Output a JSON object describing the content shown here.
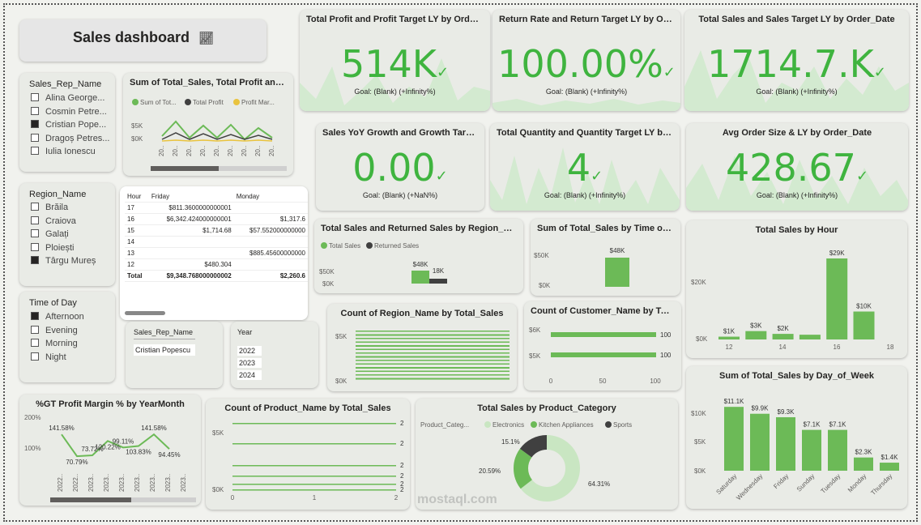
{
  "header": {
    "title": "Sales dashboard",
    "icon": "line-chart-icon"
  },
  "kpis": [
    {
      "title": "Total Profit and Profit Target LY by Order_...",
      "value": "514K",
      "goal": "Goal: (Blank) (+Infinity%)"
    },
    {
      "title": "Return Rate and Return Target LY by Ord...",
      "value": "100.00%",
      "goal": "Goal: (Blank) (+Infinity%)"
    },
    {
      "title": "Total Sales and Sales Target LY by Order_Date",
      "value": "1714.7.K",
      "goal": "Goal: (Blank) (+Infinity%)"
    },
    {
      "title": "Sales YoY Growth and Growth Targe...",
      "value": "0.00",
      "goal": "Goal: (Blank) (+NaN%)"
    },
    {
      "title": "Total Quantity and Quantity Target LY by ...",
      "value": "4",
      "goal": "Goal: (Blank) (+Infinity%)"
    },
    {
      "title": "Avg Order Size & LY by Order_Date",
      "value": "428.67",
      "goal": "Goal: (Blank) (+Infinity%)"
    }
  ],
  "slicers": {
    "rep": {
      "title": "Sales_Rep_Name",
      "items": [
        {
          "label": "Alina George...",
          "checked": false
        },
        {
          "label": "Cosmin Petre...",
          "checked": false
        },
        {
          "label": "Cristian Pope...",
          "checked": true
        },
        {
          "label": "Dragoș Petres...",
          "checked": false
        },
        {
          "label": "Iulia Ionescu",
          "checked": false
        }
      ]
    },
    "region": {
      "title": "Region_Name",
      "items": [
        {
          "label": "Brăila",
          "checked": false
        },
        {
          "label": "Craiova",
          "checked": false
        },
        {
          "label": "Galați",
          "checked": false
        },
        {
          "label": "Ploiești",
          "checked": false
        },
        {
          "label": "Târgu Mureș",
          "checked": true
        }
      ]
    },
    "time": {
      "title": "Time of Day",
      "items": [
        {
          "label": "Afternoon",
          "checked": true
        },
        {
          "label": "Evening",
          "checked": false
        },
        {
          "label": "Morning",
          "checked": false
        },
        {
          "label": "Night",
          "checked": false
        }
      ]
    }
  },
  "small_tables": {
    "rep": {
      "header": "Sales_Rep_Name",
      "value": "Cristian Popescu"
    },
    "year": {
      "header": "Year",
      "values": [
        "2022",
        "2023",
        "2024"
      ]
    }
  },
  "matrix": {
    "headers": [
      "Hour",
      "Friday",
      "Monday"
    ],
    "rows": [
      [
        "17",
        "$811.3600000000001",
        ""
      ],
      [
        "16",
        "$6,342.424000000001",
        "$1,317.6"
      ],
      [
        "15",
        "$1,714.68",
        "$57.552000000000"
      ],
      [
        "14",
        "",
        ""
      ],
      [
        "13",
        "",
        "$885.45600000000"
      ],
      [
        "12",
        "$480.304",
        ""
      ],
      [
        "Total",
        "$9,348.768000000002",
        "$2,260.6"
      ]
    ]
  },
  "charts": {
    "combo": {
      "title": "Sum of Total_Sales, Total Profit and P...",
      "legend": [
        "Sum of Tot...",
        "Total Profit",
        "Profit Mar..."
      ],
      "yticks": [
        "$5K",
        "$0K"
      ],
      "xticks": [
        "20..",
        "20..",
        "20..",
        "20..",
        "20..",
        "20..",
        "20..",
        "20..",
        "20.."
      ]
    },
    "region_returns": {
      "title": "Total Sales and Returned Sales by Region_Name",
      "legend": [
        "Total Sales",
        "Returned Sales"
      ],
      "yticks": [
        "$50K",
        "$0K"
      ],
      "labels": [
        "$48K",
        "18K"
      ]
    },
    "time_of_day": {
      "title": "Sum of Total_Sales by Time of Day",
      "yticks": [
        "$50K",
        "$0K"
      ],
      "label": "$48K"
    },
    "count_region": {
      "title": "Count of Region_Name by Total_Sales",
      "yticks": [
        "$5K",
        "$0K"
      ]
    },
    "count_customer": {
      "title": "Count of Customer_Name by Total...",
      "yticks": [
        "$6K",
        "$5K"
      ],
      "xticks": [
        "0",
        "50",
        "100"
      ],
      "labels": [
        "100",
        "100"
      ]
    },
    "count_product": {
      "title": "Count of Product_Name by Total_Sales",
      "yticks": [
        "$5K",
        "$0K"
      ],
      "xticks": [
        "0",
        "1",
        "2"
      ],
      "labels": [
        "2",
        "2",
        "2",
        "2",
        "2",
        "2"
      ]
    },
    "profit_margin": {
      "title": "%GT Profit Margin % by YearMonth",
      "yticks": [
        "200%",
        "100%"
      ],
      "labels": [
        "141.58%",
        "70.79%",
        "73.72%",
        "120.22%",
        "99.11%",
        "103.83%",
        "141.58%",
        "94.45%"
      ],
      "xticks": [
        "2022..",
        "2022..",
        "2023..",
        "2023..",
        "2023..",
        "2023..",
        "2023..",
        "2023..",
        "2023.."
      ]
    },
    "category": {
      "title": "Total Sales by Product_Category",
      "legend_title": "Product_Categ...",
      "legend": [
        "Electronics",
        "Kitchen Appliances",
        "Sports"
      ],
      "labels": [
        "15.1%",
        "20.59%",
        "64.31%"
      ]
    },
    "hour": {
      "title": "Total Sales by Hour",
      "yticks": [
        "$20K",
        "$0K"
      ],
      "xticks": [
        "12",
        "14",
        "16",
        "18"
      ],
      "labels": [
        "$1K",
        "$3K",
        "$2K",
        "$29K",
        "$10K"
      ]
    },
    "day_of_week": {
      "title": "Sum of Total_Sales by Day_of_Week",
      "yticks": [
        "$10K",
        "$5K",
        "$0K"
      ],
      "labels": [
        "$11.1K",
        "$9.9K",
        "$9.3K",
        "$7.1K",
        "$7.1K",
        "$2.3K",
        "$1.4K"
      ],
      "xticks": [
        "Saturday",
        "Wednesday",
        "Friday",
        "Sunday",
        "Tuesday",
        "Monday",
        "Thursday"
      ]
    }
  },
  "chart_data": [
    {
      "type": "bar",
      "title": "Total Sales by Hour",
      "categories": [
        "12",
        "13",
        "14",
        "15",
        "16",
        "17"
      ],
      "values": [
        1,
        3,
        2,
        1.7,
        29,
        10
      ],
      "ylim": [
        0,
        30
      ]
    },
    {
      "type": "bar",
      "title": "Sum of Total_Sales by Day_of_Week",
      "categories": [
        "Saturday",
        "Wednesday",
        "Friday",
        "Sunday",
        "Tuesday",
        "Monday",
        "Thursday"
      ],
      "values": [
        11.1,
        9.9,
        9.3,
        7.1,
        7.1,
        2.3,
        1.4
      ],
      "ylim": [
        0,
        12
      ]
    },
    {
      "type": "pie",
      "title": "Total Sales by Product_Category",
      "categories": [
        "Electronics",
        "Kitchen Appliances",
        "Sports"
      ],
      "values": [
        64.31,
        20.59,
        15.1
      ]
    },
    {
      "type": "line",
      "title": "%GT Profit Margin % by YearMonth",
      "values": [
        141.58,
        70.79,
        73.72,
        120.22,
        99.11,
        103.83,
        141.58,
        94.45
      ]
    },
    {
      "type": "bar",
      "title": "Total Sales and Returned Sales by Region_Name",
      "series": [
        {
          "name": "Total Sales",
          "values": [
            48
          ]
        },
        {
          "name": "Returned Sales",
          "values": [
            18
          ]
        }
      ]
    },
    {
      "type": "bar",
      "title": "Sum of Total_Sales by Time of Day",
      "categories": [
        "Afternoon"
      ],
      "values": [
        48
      ]
    }
  ],
  "colors": {
    "green": "#6cba57",
    "kpi": "#3fb43f",
    "dark": "#404040",
    "yellow": "#e9c33e"
  },
  "watermark": "mostaql.com"
}
